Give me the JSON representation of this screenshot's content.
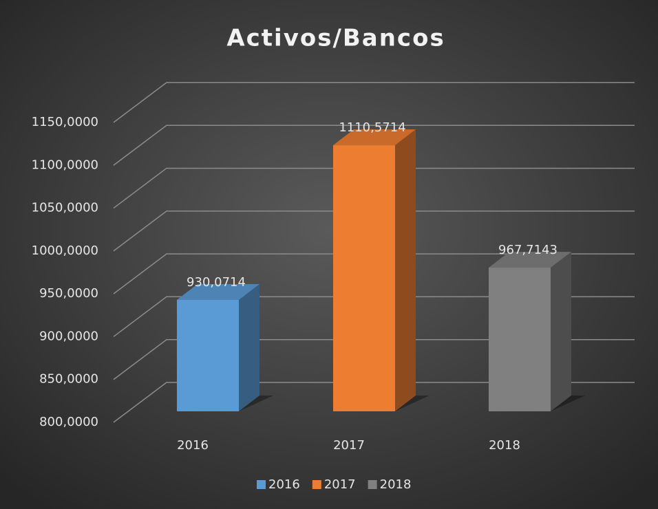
{
  "chart_data": {
    "type": "bar3d",
    "title": "Activos/Bancos",
    "categories": [
      "2016",
      "2017",
      "2018"
    ],
    "values": [
      930.0714,
      1110.5714,
      967.7143
    ],
    "value_labels": [
      "930,0714",
      "1110,5714",
      "967,7143"
    ],
    "colors": [
      "#5b9bd5",
      "#ed7d31",
      "#808080"
    ],
    "ylim": [
      800,
      1150
    ],
    "yticks": [
      {
        "value": 800,
        "label": "800,0000"
      },
      {
        "value": 850,
        "label": "850,0000"
      },
      {
        "value": 900,
        "label": "900,0000"
      },
      {
        "value": 950,
        "label": "950,0000"
      },
      {
        "value": 1000,
        "label": "1000,0000"
      },
      {
        "value": 1050,
        "label": "1050,0000"
      },
      {
        "value": 1100,
        "label": "1100,0000"
      },
      {
        "value": 1150,
        "label": "1150,0000"
      }
    ],
    "grid": true,
    "legend": "bottom"
  }
}
